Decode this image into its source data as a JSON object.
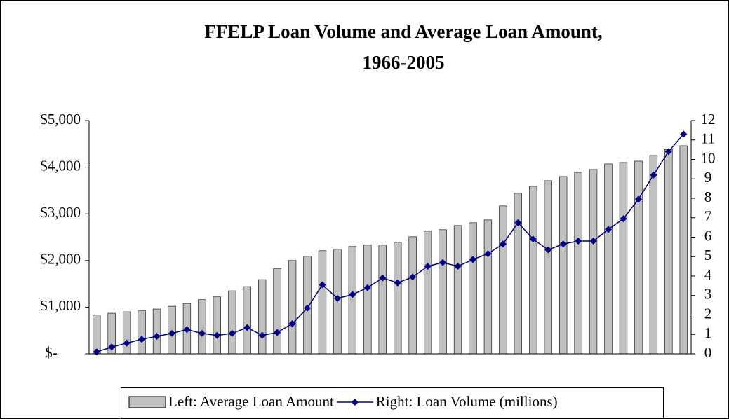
{
  "chart_data": {
    "type": "bar_line",
    "title": [
      "FFELP Loan Volume and Average Loan Amount,",
      "1966-2005"
    ],
    "categories": [
      null,
      null,
      null,
      null,
      null,
      null,
      null,
      null,
      null,
      null,
      null,
      null,
      null,
      null,
      null,
      null,
      null,
      null,
      null,
      null,
      null,
      null,
      null,
      null,
      null,
      null,
      null,
      null,
      null,
      null,
      null,
      null,
      null,
      null,
      null,
      null,
      null,
      null,
      null,
      null
    ],
    "series": [
      {
        "name": "Left: Average Loan Amount",
        "type": "bar",
        "color": "#c0c0c0",
        "axis": "y",
        "values": [
          830,
          870,
          900,
          930,
          960,
          1020,
          1080,
          1160,
          1220,
          1350,
          1440,
          1590,
          1830,
          2000,
          2090,
          2210,
          2240,
          2300,
          2330,
          2330,
          2390,
          2510,
          2630,
          2660,
          2750,
          2810,
          2870,
          3170,
          3440,
          3590,
          3710,
          3800,
          3890,
          3950,
          4070,
          4100,
          4130,
          4250,
          4380,
          4460
        ]
      },
      {
        "name": "Right: Loan Volume (millions)",
        "type": "line",
        "color": "#000080",
        "axis": "y2",
        "values": [
          0.1,
          0.35,
          0.55,
          0.75,
          0.9,
          1.05,
          1.25,
          1.05,
          0.95,
          1.05,
          1.35,
          0.95,
          1.1,
          1.55,
          2.35,
          3.55,
          2.85,
          3.05,
          3.4,
          3.9,
          3.65,
          3.95,
          4.5,
          4.7,
          4.5,
          4.85,
          5.15,
          5.65,
          6.75,
          5.9,
          5.35,
          5.65,
          5.8,
          5.8,
          6.4,
          6.95,
          7.95,
          9.2,
          10.4,
          11.3
        ]
      }
    ],
    "ylim": [
      0,
      5000
    ],
    "yticks": [
      {
        "value": 0,
        "label": "$-"
      },
      {
        "value": 1000,
        "label": "$1,000"
      },
      {
        "value": 2000,
        "label": "$2,000"
      },
      {
        "value": 3000,
        "label": "$3,000"
      },
      {
        "value": 4000,
        "label": "$4,000"
      },
      {
        "value": 5000,
        "label": "$5,000"
      }
    ],
    "y2lim": [
      0,
      12
    ],
    "y2ticks": [
      0,
      1,
      2,
      3,
      4,
      5,
      6,
      7,
      8,
      9,
      10,
      11,
      12
    ],
    "grid": false,
    "legend": "bottom"
  }
}
